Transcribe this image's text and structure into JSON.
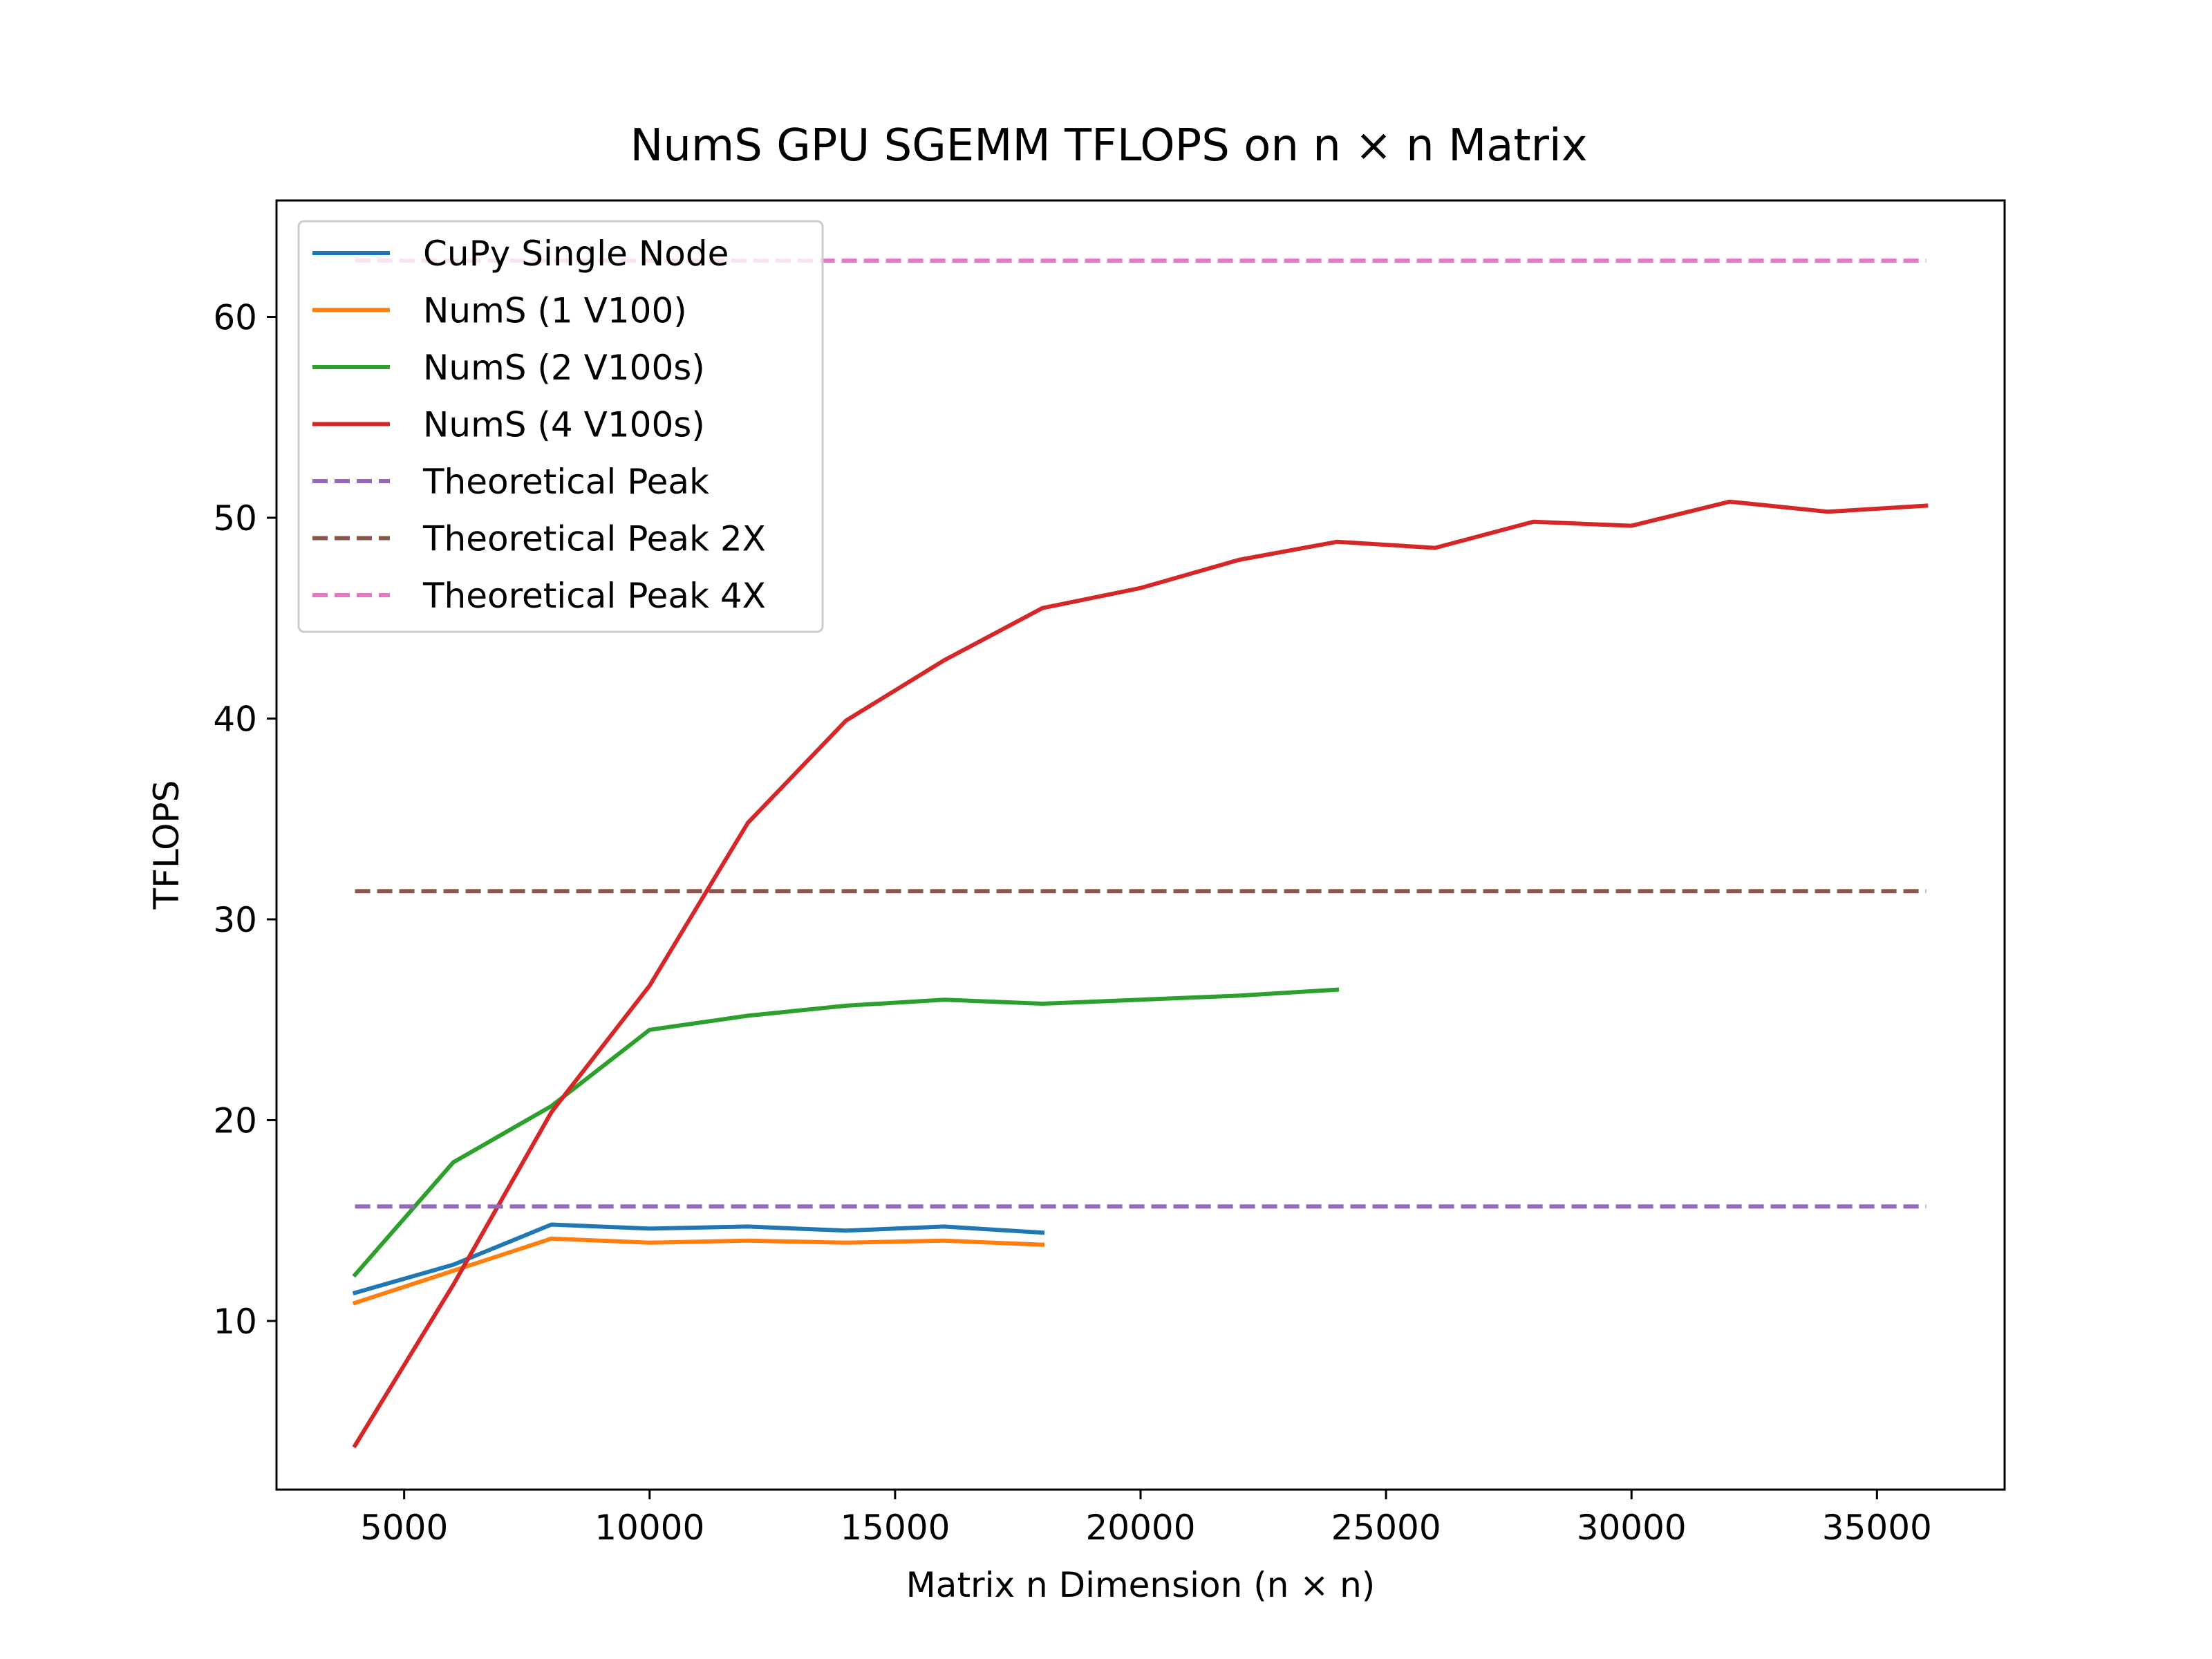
{
  "chart_data": {
    "type": "line",
    "title": "NumS GPU SGEMM TFLOPS on n × n Matrix",
    "xlabel": "Matrix n Dimension (n × n)",
    "ylabel": "TFLOPS",
    "xlim": [
      2400,
      37600
    ],
    "ylim": [
      1.6,
      65.8
    ],
    "xticks": [
      5000,
      10000,
      15000,
      20000,
      25000,
      30000,
      35000
    ],
    "yticks": [
      10,
      20,
      30,
      40,
      50,
      60
    ],
    "grid": false,
    "legend_position": "top-left",
    "series": [
      {
        "name": "CuPy Single Node",
        "color": "#1f77b4",
        "style": "solid",
        "x": [
          4000,
          6000,
          8000,
          10000,
          12000,
          14000,
          16000,
          18000
        ],
        "y": [
          11.4,
          12.8,
          14.8,
          14.6,
          14.7,
          14.5,
          14.7,
          14.4
        ]
      },
      {
        "name": "NumS (1 V100)",
        "color": "#ff7f0e",
        "style": "solid",
        "x": [
          4000,
          6000,
          8000,
          10000,
          12000,
          14000,
          16000,
          18000
        ],
        "y": [
          10.9,
          12.5,
          14.1,
          13.9,
          14.0,
          13.9,
          14.0,
          13.8
        ]
      },
      {
        "name": "NumS (2 V100s)",
        "color": "#2ca02c",
        "style": "solid",
        "x": [
          4000,
          6000,
          8000,
          10000,
          12000,
          14000,
          16000,
          18000,
          20000,
          22000,
          24000
        ],
        "y": [
          12.3,
          17.9,
          20.7,
          24.5,
          25.2,
          25.7,
          26.0,
          25.8,
          26.0,
          26.2,
          26.5
        ]
      },
      {
        "name": "NumS (4 V100s)",
        "color": "#d62728",
        "style": "solid",
        "x": [
          4000,
          6000,
          8000,
          10000,
          12000,
          14000,
          16000,
          18000,
          20000,
          22000,
          24000,
          26000,
          28000,
          30000,
          32000,
          34000,
          36000
        ],
        "y": [
          3.8,
          11.8,
          20.4,
          26.7,
          34.8,
          39.9,
          42.9,
          45.5,
          46.5,
          47.9,
          48.8,
          48.5,
          49.8,
          49.6,
          50.8,
          50.3,
          50.6
        ]
      },
      {
        "name": "Theoretical Peak",
        "color": "#9467bd",
        "style": "dashed",
        "x": [
          4000,
          36000
        ],
        "y": [
          15.7,
          15.7
        ]
      },
      {
        "name": "Theoretical Peak 2X",
        "color": "#8c564b",
        "style": "dashed",
        "x": [
          4000,
          36000
        ],
        "y": [
          31.4,
          31.4
        ]
      },
      {
        "name": "Theoretical Peak 4X",
        "color": "#e377c2",
        "style": "dashed",
        "x": [
          4000,
          36000
        ],
        "y": [
          62.8,
          62.8
        ]
      }
    ]
  }
}
